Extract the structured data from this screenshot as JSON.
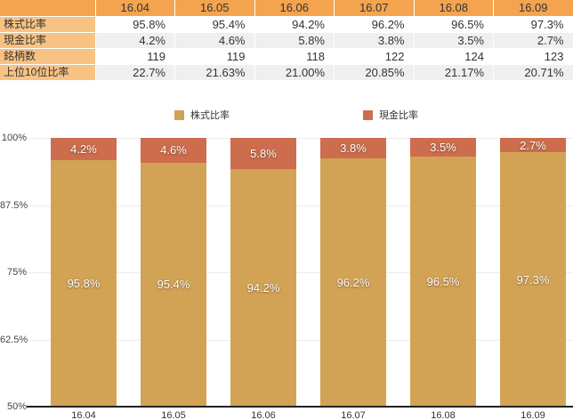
{
  "colors": {
    "table_header_bg": "#F4A44E",
    "table_label_bg": "#F8C283",
    "table_alt_row_bg": "#EFEFEF",
    "stock_series": "#D2A355",
    "cash_series": "#CD6D4D",
    "gridline": "#ECECEC",
    "baseline": "#222222"
  },
  "table": {
    "corner_label": "",
    "col_headers": [
      "16.04",
      "16.05",
      "16.06",
      "16.07",
      "16.08",
      "16.09"
    ],
    "rows": [
      {
        "label": "株式比率",
        "values": [
          "95.8%",
          "95.4%",
          "94.2%",
          "96.2%",
          "96.5%",
          "97.3%"
        ]
      },
      {
        "label": "現金比率",
        "values": [
          "4.2%",
          "4.6%",
          "5.8%",
          "3.8%",
          "3.5%",
          "2.7%"
        ]
      },
      {
        "label": "銘柄数",
        "values": [
          "119",
          "119",
          "118",
          "122",
          "124",
          "123"
        ]
      },
      {
        "label": "上位10位比率",
        "values": [
          "22.7%",
          "21.63%",
          "21.00%",
          "20.85%",
          "21.17%",
          "20.71%"
        ]
      }
    ]
  },
  "chart_data": {
    "type": "bar",
    "stacked": true,
    "title": "",
    "categories": [
      "16.04",
      "16.05",
      "16.06",
      "16.07",
      "16.08",
      "16.09"
    ],
    "series": [
      {
        "name": "株式比率",
        "color": "#D2A355",
        "values": [
          95.8,
          95.4,
          94.2,
          96.2,
          96.5,
          97.3
        ],
        "labels": [
          "95.8%",
          "95.4%",
          "94.2%",
          "96.2%",
          "96.5%",
          "97.3%"
        ]
      },
      {
        "name": "現金比率",
        "color": "#CD6D4D",
        "values": [
          4.2,
          4.6,
          5.8,
          3.8,
          3.5,
          2.7
        ],
        "labels": [
          "4.2%",
          "4.6%",
          "5.8%",
          "3.8%",
          "3.5%",
          "2.7%"
        ]
      }
    ],
    "ylim": [
      50,
      100
    ],
    "yticks": [
      {
        "value": 100,
        "label": "100%"
      },
      {
        "value": 87.5,
        "label": "87.5%"
      },
      {
        "value": 75,
        "label": "75%"
      },
      {
        "value": 62.5,
        "label": "62.5%"
      },
      {
        "value": 50,
        "label": "50%"
      }
    ],
    "legend_position": "top",
    "grid": true
  }
}
